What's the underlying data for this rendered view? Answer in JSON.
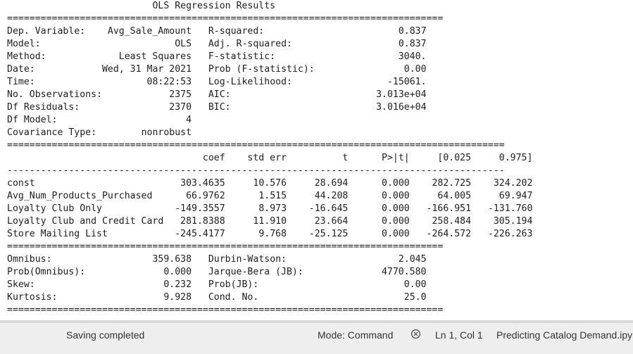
{
  "regression_output": {
    "title": "OLS Regression Results",
    "sep_double_short": "==============================================================================",
    "sep_double_long": "=========================================================================================",
    "sep_single_long": "-----------------------------------------------------------------------------------------",
    "summary": {
      "left": [
        {
          "label": "Dep. Variable:",
          "value": "Avg_Sale_Amount"
        },
        {
          "label": "Model:",
          "value": "OLS"
        },
        {
          "label": "Method:",
          "value": "Least Squares"
        },
        {
          "label": "Date:",
          "value": "Wed, 31 Mar 2021"
        },
        {
          "label": "Time:",
          "value": "08:22:53"
        },
        {
          "label": "No. Observations:",
          "value": "2375"
        },
        {
          "label": "Df Residuals:",
          "value": "2370"
        },
        {
          "label": "Df Model:",
          "value": "4"
        },
        {
          "label": "Covariance Type:",
          "value": "nonrobust"
        }
      ],
      "right": [
        {
          "label": "R-squared:",
          "value": "0.837"
        },
        {
          "label": "Adj. R-squared:",
          "value": "0.837"
        },
        {
          "label": "F-statistic:",
          "value": "3040."
        },
        {
          "label": "Prob (F-statistic):",
          "value": "0.00"
        },
        {
          "label": "Log-Likelihood:",
          "value": "-15061."
        },
        {
          "label": "AIC:",
          "value": "3.013e+04"
        },
        {
          "label": "BIC:",
          "value": "3.016e+04"
        }
      ]
    },
    "coef_table": {
      "headers": [
        "coef",
        "std err",
        "t",
        "P>|t|",
        "[0.025",
        "0.975]"
      ],
      "rows": [
        {
          "name": "const",
          "values": [
            "303.4635",
            "10.576",
            "28.694",
            "0.000",
            "282.725",
            "324.202"
          ]
        },
        {
          "name": "Avg_Num_Products_Purchased",
          "values": [
            "66.9762",
            "1.515",
            "44.208",
            "0.000",
            "64.005",
            "69.947"
          ]
        },
        {
          "name": "Loyalty Club Only",
          "values": [
            "-149.3557",
            "8.973",
            "-16.645",
            "0.000",
            "-166.951",
            "-131.760"
          ]
        },
        {
          "name": "Loyalty Club and Credit Card",
          "values": [
            "281.8388",
            "11.910",
            "23.664",
            "0.000",
            "258.484",
            "305.194"
          ]
        },
        {
          "name": "Store Mailing List",
          "values": [
            "-245.4177",
            "9.768",
            "-25.125",
            "0.000",
            "-264.572",
            "-226.263"
          ]
        }
      ]
    },
    "diagnostics": {
      "left": [
        {
          "label": "Omnibus:",
          "value": "359.638"
        },
        {
          "label": "Prob(Omnibus):",
          "value": "0.000"
        },
        {
          "label": "Skew:",
          "value": "0.232"
        },
        {
          "label": "Kurtosis:",
          "value": "9.928"
        }
      ],
      "right": [
        {
          "label": "Durbin-Watson:",
          "value": "2.045"
        },
        {
          "label": "Jarque-Bera (JB):",
          "value": "4770.580"
        },
        {
          "label": "Prob(JB):",
          "value": "0.00"
        },
        {
          "label": "Cond. No.",
          "value": "25.0"
        }
      ]
    }
  },
  "status_bar": {
    "saving_text": "Saving completed",
    "mode_text": "Mode: Command",
    "kernel_icon": "kernel-status-icon",
    "cursor_text": "Ln 1, Col 1",
    "file_text": "Predicting Catalog Demand.ipynb"
  }
}
